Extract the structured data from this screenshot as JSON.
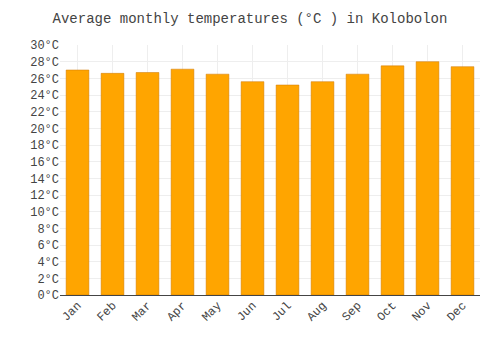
{
  "chart_data": {
    "type": "bar",
    "title": "Average monthly temperatures (°C ) in Kolobolon",
    "categories": [
      "Jan",
      "Feb",
      "Mar",
      "Apr",
      "May",
      "Jun",
      "Jul",
      "Aug",
      "Sep",
      "Oct",
      "Nov",
      "Dec"
    ],
    "values": [
      27.0,
      26.6,
      26.7,
      27.1,
      26.5,
      25.6,
      25.2,
      25.6,
      26.5,
      27.5,
      28.0,
      27.4
    ],
    "color": "#FFA500",
    "ylim": [
      0,
      30
    ],
    "yticks": [
      {
        "value": 0,
        "label": "0°C"
      },
      {
        "value": 2,
        "label": "2°C"
      },
      {
        "value": 4,
        "label": "4°C"
      },
      {
        "value": 6,
        "label": "6°C"
      },
      {
        "value": 8,
        "label": "8°C"
      },
      {
        "value": 10,
        "label": "10°C"
      },
      {
        "value": 12,
        "label": "12°C"
      },
      {
        "value": 14,
        "label": "14°C"
      },
      {
        "value": 16,
        "label": "16°C"
      },
      {
        "value": 18,
        "label": "18°C"
      },
      {
        "value": 20,
        "label": "20°C"
      },
      {
        "value": 22,
        "label": "22°C"
      },
      {
        "value": 24,
        "label": "24°C"
      },
      {
        "value": 26,
        "label": "26°C"
      },
      {
        "value": 28,
        "label": "28°C"
      },
      {
        "value": 30,
        "label": "30°C"
      }
    ],
    "grid": true
  }
}
